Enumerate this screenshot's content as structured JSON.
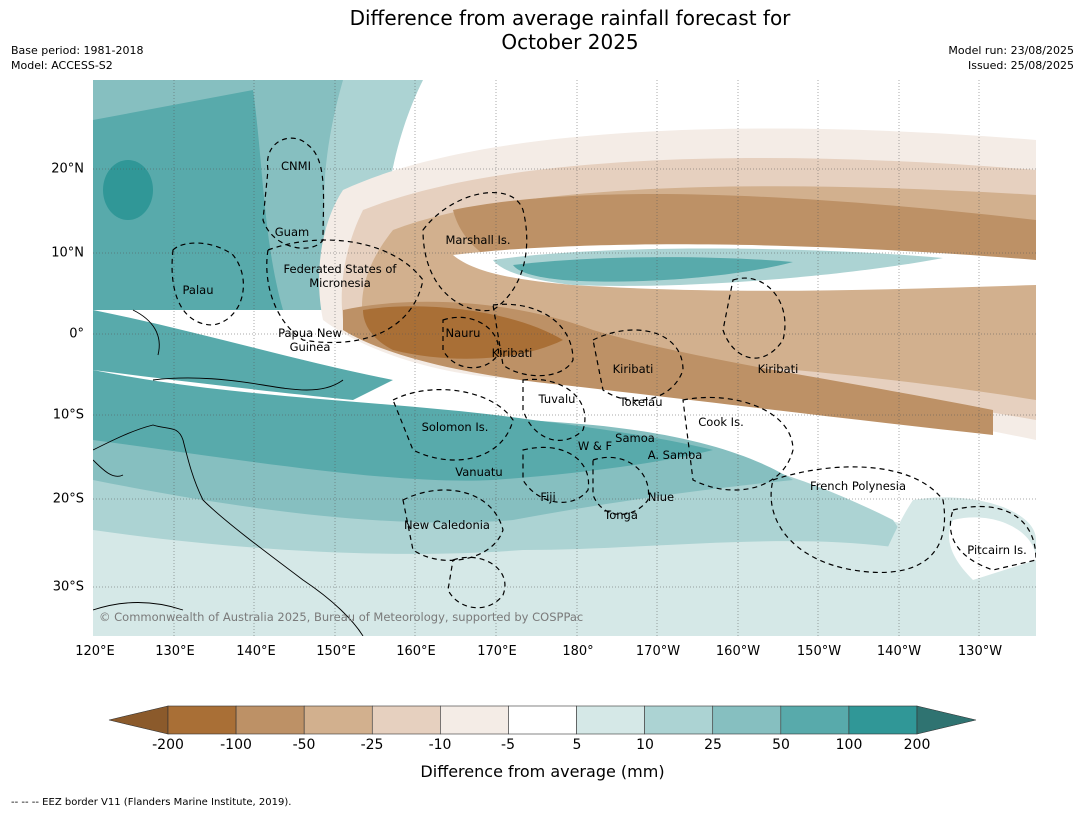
{
  "title_line1": "Difference from average rainfall forecast for",
  "title_line2": "October 2025",
  "meta_left": [
    "Base period: 1981-2018",
    "Model: ACCESS-S2"
  ],
  "meta_right": [
    "Model run: 23/08/2025",
    "Issued: 25/08/2025"
  ],
  "map": {
    "lon_labels": [
      "120°E",
      "130°E",
      "140°E",
      "150°E",
      "160°E",
      "170°E",
      "180°",
      "170°W",
      "160°W",
      "150°W",
      "140°W",
      "130°W"
    ],
    "lat_labels": [
      "20°N",
      "10°N",
      "0°",
      "10°S",
      "20°S",
      "30°S"
    ],
    "places": [
      {
        "name": "CNMI"
      },
      {
        "name": "Guam"
      },
      {
        "name": "Marshall Is."
      },
      {
        "name": "Federated States of Micronesia"
      },
      {
        "name": "Palau"
      },
      {
        "name": "Papua New Guinea"
      },
      {
        "name": "Nauru"
      },
      {
        "name": "Kiribati"
      },
      {
        "name": "Kiribati"
      },
      {
        "name": "Kiribati"
      },
      {
        "name": "Tuvalu"
      },
      {
        "name": "Tokelau"
      },
      {
        "name": "Cook Is."
      },
      {
        "name": "Solomon Is."
      },
      {
        "name": "Samoa"
      },
      {
        "name": "W & F"
      },
      {
        "name": "A. Samoa"
      },
      {
        "name": "Vanuatu"
      },
      {
        "name": "Fiji"
      },
      {
        "name": "Niue"
      },
      {
        "name": "Tonga"
      },
      {
        "name": "French Polynesia"
      },
      {
        "name": "New Caledonia"
      },
      {
        "name": "Pitcairn Is."
      }
    ],
    "copyright": "© Commonwealth of Australia 2025, Bureau of Meteorology, supported by COSPPac"
  },
  "colorbar": {
    "labels": [
      "-200",
      "-100",
      "-50",
      "-25",
      "-10",
      "-5",
      "5",
      "10",
      "25",
      "50",
      "100",
      "200"
    ],
    "colors": [
      "#a96f36",
      "#bd9166",
      "#d2b08e",
      "#e6d0bf",
      "#f4ece6",
      "#ffffff",
      "#d5e8e7",
      "#acd3d3",
      "#86bfc0",
      "#58aaab",
      "#309797"
    ],
    "under_color": "#8b5a2b",
    "over_color": "#2f7371",
    "title": "Difference from average (mm)"
  },
  "footer": "--  --  -- EEZ border V11 (Flanders Marine Institute, 2019)."
}
